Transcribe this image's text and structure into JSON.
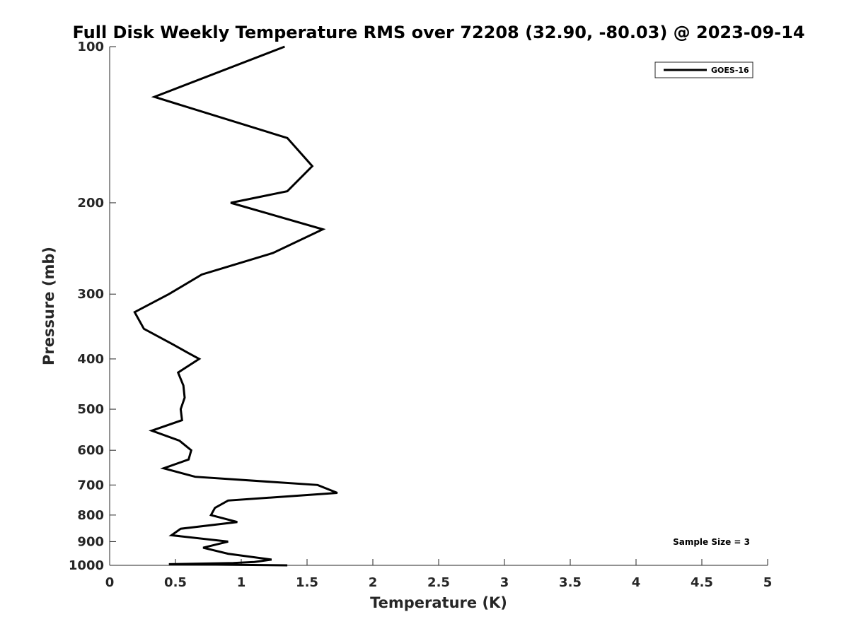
{
  "chart_data": {
    "type": "line",
    "title": "Full Disk Weekly Temperature RMS over 72208 (32.90, -80.03) @ 2023-09-14",
    "xlabel": "Temperature (K)",
    "ylabel": "Pressure (mb)",
    "xlim": [
      0,
      5
    ],
    "ylim": [
      100,
      1000
    ],
    "y_scale": "log",
    "y_reversed": true,
    "x_ticks": [
      "0",
      "0.5",
      "1",
      "1.5",
      "2",
      "2.5",
      "3",
      "3.5",
      "4",
      "4.5",
      "5"
    ],
    "y_ticks": [
      "100",
      "200",
      "300",
      "400",
      "500",
      "600",
      "700",
      "800",
      "900",
      "1000"
    ],
    "grid": false,
    "legend_position": "top-right",
    "series": [
      {
        "name": "GOES-16",
        "color": "#000000",
        "points": [
          [
            1.33,
            100
          ],
          [
            0.34,
            125
          ],
          [
            1.35,
            150
          ],
          [
            1.54,
            170
          ],
          [
            1.35,
            190
          ],
          [
            0.92,
            200
          ],
          [
            1.62,
            225
          ],
          [
            1.24,
            250
          ],
          [
            0.7,
            275
          ],
          [
            0.45,
            300
          ],
          [
            0.19,
            325
          ],
          [
            0.26,
            350
          ],
          [
            0.48,
            375
          ],
          [
            0.6,
            390
          ],
          [
            0.68,
            400
          ],
          [
            0.52,
            425
          ],
          [
            0.56,
            450
          ],
          [
            0.57,
            475
          ],
          [
            0.54,
            500
          ],
          [
            0.55,
            525
          ],
          [
            0.32,
            550
          ],
          [
            0.53,
            575
          ],
          [
            0.62,
            600
          ],
          [
            0.6,
            625
          ],
          [
            0.41,
            650
          ],
          [
            0.65,
            675
          ],
          [
            1.58,
            700
          ],
          [
            1.73,
            725
          ],
          [
            0.9,
            750
          ],
          [
            0.8,
            775
          ],
          [
            0.77,
            800
          ],
          [
            0.97,
            825
          ],
          [
            0.54,
            850
          ],
          [
            0.47,
            875
          ],
          [
            0.9,
            900
          ],
          [
            0.71,
            925
          ],
          [
            0.9,
            950
          ],
          [
            1.23,
            975
          ],
          [
            1.1,
            985
          ],
          [
            0.94,
            990
          ],
          [
            0.45,
            995
          ],
          [
            1.35,
            1000
          ]
        ]
      }
    ],
    "annotation": "Sample Size = 3"
  }
}
